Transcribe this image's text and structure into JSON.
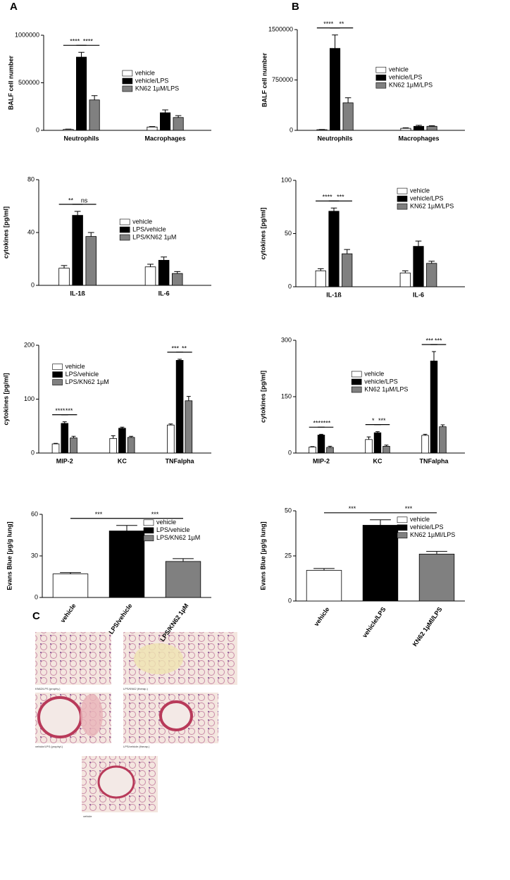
{
  "panels": {
    "a": "A",
    "b": "B",
    "c": "C"
  },
  "chart_data": [
    {
      "type": "bar",
      "ylabel": "BALF cell number",
      "categories": [
        "Neutrophils",
        "Macrophages"
      ],
      "series": [
        {
          "name": "vehicle",
          "color": "#ffffff",
          "values": [
            10000,
            35000
          ],
          "errors": [
            3000,
            5000
          ]
        },
        {
          "name": "vehicle/LPS",
          "color": "#000000",
          "values": [
            770000,
            185000
          ],
          "errors": [
            50000,
            30000
          ]
        },
        {
          "name": "KN62 1µM/LPS",
          "color": "#808080",
          "values": [
            320000,
            135000
          ],
          "errors": [
            45000,
            20000
          ]
        }
      ],
      "ylim": [
        0,
        1000000
      ],
      "yticks": [
        0,
        500000,
        1000000
      ],
      "legend": "center right",
      "significance": [
        {
          "category": 0,
          "between": [
            0,
            1
          ],
          "label": "****"
        },
        {
          "category": 0,
          "between": [
            1,
            2
          ],
          "label": "****"
        }
      ]
    },
    {
      "type": "bar",
      "ylabel": "BALF cell number",
      "categories": [
        "Neutrophils",
        "Macrophages"
      ],
      "series": [
        {
          "name": "vehicle",
          "color": "#ffffff",
          "values": [
            10000,
            30000
          ],
          "errors": [
            3000,
            8000
          ]
        },
        {
          "name": "vehicle/LPS",
          "color": "#000000",
          "values": [
            1220000,
            60000
          ],
          "errors": [
            200000,
            15000
          ]
        },
        {
          "name": "KN62 1µM/LPS",
          "color": "#808080",
          "values": [
            410000,
            60000
          ],
          "errors": [
            75000,
            10000
          ]
        }
      ],
      "ylim": [
        0,
        1500000
      ],
      "yticks": [
        0,
        750000,
        1500000
      ],
      "legend": "center right",
      "significance": [
        {
          "category": 0,
          "between": [
            0,
            1
          ],
          "label": "****"
        },
        {
          "category": 0,
          "between": [
            1,
            2
          ],
          "label": "**"
        }
      ]
    },
    {
      "type": "bar",
      "ylabel": "cytokines [pg/ml]",
      "categories": [
        "IL-1ß",
        "IL-6"
      ],
      "series": [
        {
          "name": "vehicle",
          "color": "#ffffff",
          "values": [
            13,
            14
          ],
          "errors": [
            2,
            2
          ]
        },
        {
          "name": "LPS/vehicle",
          "color": "#000000",
          "values": [
            53,
            19
          ],
          "errors": [
            3,
            2.5
          ]
        },
        {
          "name": "LPS/KN62 1µM",
          "color": "#808080",
          "values": [
            37,
            9
          ],
          "errors": [
            3,
            1.5
          ]
        }
      ],
      "ylim": [
        0,
        80
      ],
      "yticks": [
        0,
        40,
        80
      ],
      "legend": "center right",
      "significance": [
        {
          "category": 0,
          "between": [
            0,
            1
          ],
          "label": "**"
        },
        {
          "category": 0,
          "between": [
            1,
            2
          ],
          "label": "ns"
        }
      ]
    },
    {
      "type": "bar",
      "ylabel": "cytokines [pg/ml]",
      "categories": [
        "IL-1ß",
        "IL-6"
      ],
      "series": [
        {
          "name": "vehicle",
          "color": "#ffffff",
          "values": [
            15,
            13
          ],
          "errors": [
            2,
            2
          ]
        },
        {
          "name": "vehicle/LPS",
          "color": "#000000",
          "values": [
            71,
            38
          ],
          "errors": [
            3,
            5
          ]
        },
        {
          "name": "KN62 1µM/LPS",
          "color": "#808080",
          "values": [
            31,
            22
          ],
          "errors": [
            4,
            2
          ]
        }
      ],
      "ylim": [
        0,
        100
      ],
      "yticks": [
        0,
        50,
        100
      ],
      "legend": "upper right",
      "significance": [
        {
          "category": 0,
          "between": [
            0,
            1
          ],
          "label": "****"
        },
        {
          "category": 0,
          "between": [
            1,
            2
          ],
          "label": "***"
        }
      ]
    },
    {
      "type": "bar",
      "ylabel": "cytokines [pg/ml]",
      "categories": [
        "MIP-2",
        "KC",
        "TNFalpha"
      ],
      "series": [
        {
          "name": "vehicle",
          "color": "#ffffff",
          "values": [
            17,
            27,
            52
          ],
          "errors": [
            1,
            5,
            2
          ]
        },
        {
          "name": "LPS/vehicle",
          "color": "#000000",
          "values": [
            55,
            46,
            172
          ],
          "errors": [
            3,
            2,
            2
          ]
        },
        {
          "name": "LPS/KN62 1µM",
          "color": "#808080",
          "values": [
            28,
            29,
            97
          ],
          "errors": [
            3,
            2,
            8
          ]
        }
      ],
      "ylim": [
        0,
        200
      ],
      "yticks": [
        0,
        100,
        200
      ],
      "legend": "upper left",
      "significance": [
        {
          "category": 0,
          "between": [
            0,
            1
          ],
          "label": "****"
        },
        {
          "category": 0,
          "between": [
            1,
            2
          ],
          "label": "***"
        },
        {
          "category": 2,
          "between": [
            0,
            1
          ],
          "label": "***"
        },
        {
          "category": 2,
          "between": [
            1,
            2
          ],
          "label": "**"
        }
      ]
    },
    {
      "type": "bar",
      "ylabel": "cytokines [pg/ml]",
      "categories": [
        "MIP-2",
        "KC",
        "TNFalpha"
      ],
      "series": [
        {
          "name": "vehicle",
          "color": "#ffffff",
          "values": [
            16,
            36,
            47
          ],
          "errors": [
            1,
            7,
            3
          ]
        },
        {
          "name": "vehicle/LPS",
          "color": "#000000",
          "values": [
            48,
            54,
            245
          ],
          "errors": [
            2,
            3,
            25
          ]
        },
        {
          "name": "KN62 1µM/LPS",
          "color": "#808080",
          "values": [
            15,
            18,
            70
          ],
          "errors": [
            3,
            3,
            5
          ]
        }
      ],
      "ylim": [
        0,
        300
      ],
      "yticks": [
        0,
        150,
        300
      ],
      "legend": "center",
      "significance": [
        {
          "category": 0,
          "between": [
            0,
            1
          ],
          "label": "***"
        },
        {
          "category": 0,
          "between": [
            1,
            2
          ],
          "label": "****"
        },
        {
          "category": 1,
          "between": [
            0,
            1
          ],
          "label": "*"
        },
        {
          "category": 1,
          "between": [
            1,
            2
          ],
          "label": "***"
        },
        {
          "category": 2,
          "between": [
            0,
            1
          ],
          "label": "***"
        },
        {
          "category": 2,
          "between": [
            1,
            2
          ],
          "label": "***"
        }
      ]
    },
    {
      "type": "bar",
      "ylabel": "Evans Blue [µg/g lung]",
      "categories": [
        "vehicle",
        "LPS/vehicle",
        "LPS/KN62 1µM"
      ],
      "values": [
        17,
        48,
        26
      ],
      "errors": [
        1,
        4,
        2
      ],
      "colors": [
        "#ffffff",
        "#000000",
        "#808080"
      ],
      "ylim": [
        0,
        60
      ],
      "yticks": [
        0,
        30,
        60
      ],
      "legend": "upper right",
      "significance": [
        {
          "between": [
            0,
            1
          ],
          "label": "***"
        },
        {
          "between": [
            1,
            2
          ],
          "label": "***"
        }
      ]
    },
    {
      "type": "bar",
      "ylabel": "Evans Blue [µg/g lung]",
      "categories": [
        "vehicle",
        "vehicle/LPS",
        "KN62 1µMl/LPS"
      ],
      "values": [
        17,
        42,
        26
      ],
      "errors": [
        1,
        3,
        1.5
      ],
      "colors": [
        "#ffffff",
        "#000000",
        "#808080"
      ],
      "ylim": [
        0,
        50
      ],
      "yticks": [
        0,
        25,
        50
      ],
      "legend": "upper right",
      "significance": [
        {
          "between": [
            0,
            1
          ],
          "label": "***"
        },
        {
          "between": [
            1,
            2
          ],
          "label": "***"
        }
      ]
    }
  ],
  "micrographs": [
    {
      "caption": "KN62/LPS (prophy.)"
    },
    {
      "caption": "LPS/KN62 (therap.)"
    },
    {
      "caption": "vehicle/LPS (prophyl.)"
    },
    {
      "caption": "LPS/vehicle (therap.)"
    },
    {
      "caption": "vehicle"
    }
  ]
}
